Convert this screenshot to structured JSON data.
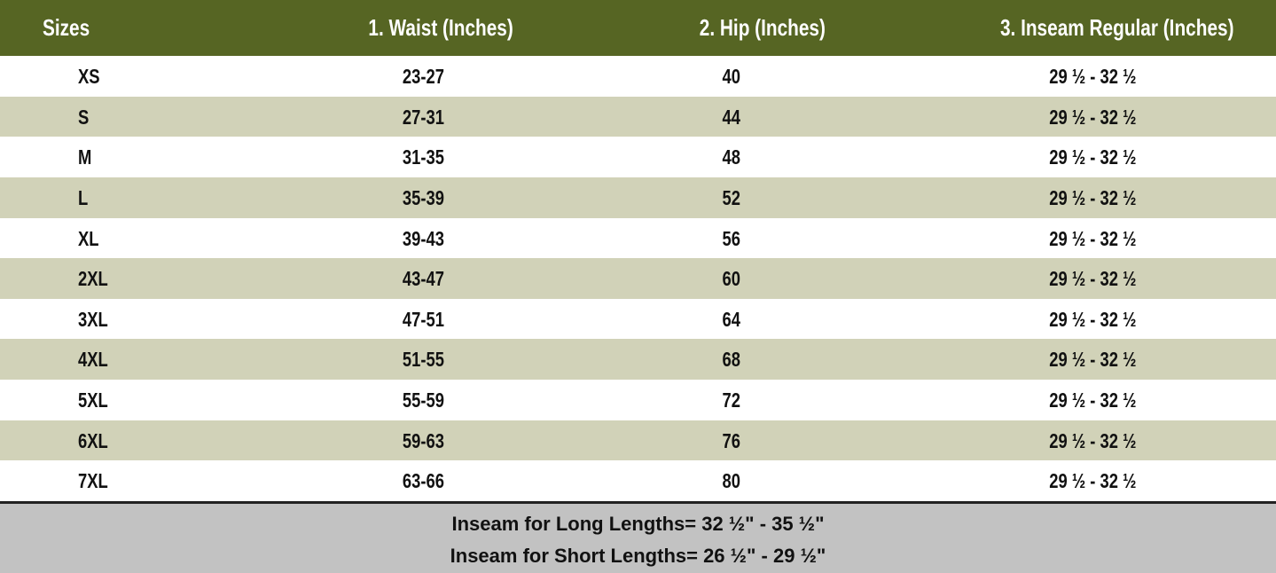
{
  "table": {
    "header": [
      "Sizes",
      "1. Waist (Inches)",
      "2. Hip (Inches)",
      "3. Inseam Regular (Inches)"
    ],
    "rows": [
      [
        "XS",
        "23-27",
        "40",
        "29 ½ - 32 ½"
      ],
      [
        "S",
        "27-31",
        "44",
        "29 ½ - 32 ½"
      ],
      [
        "M",
        "31-35",
        "48",
        "29 ½ - 32 ½"
      ],
      [
        "L",
        "35-39",
        "52",
        "29 ½ - 32 ½"
      ],
      [
        "XL",
        "39-43",
        "56",
        "29 ½ - 32 ½"
      ],
      [
        "2XL",
        "43-47",
        "60",
        "29 ½ - 32 ½"
      ],
      [
        "3XL",
        "47-51",
        "64",
        "29 ½ - 32 ½"
      ],
      [
        "4XL",
        "51-55",
        "68",
        "29 ½ - 32 ½"
      ],
      [
        "5XL",
        "55-59",
        "72",
        "29 ½ - 32 ½"
      ],
      [
        "6XL",
        "59-63",
        "76",
        "29 ½ - 32 ½"
      ],
      [
        "7XL",
        "63-66",
        "80",
        "29 ½ - 32 ½"
      ]
    ]
  },
  "footer": [
    "Inseam for Long Lengths= 32 ½\" - 35 ½\"",
    "Inseam for Short Lengths= 26 ½\" - 29 ½\""
  ]
}
